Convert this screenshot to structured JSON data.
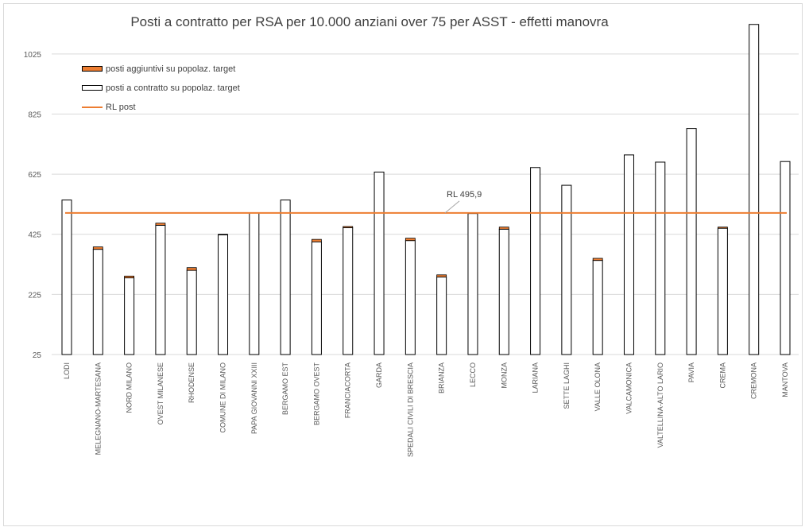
{
  "chart_data": {
    "type": "bar",
    "title": "Posti a contratto per RSA  per 10.000 anziani over 75 per ASST - effetti manovra",
    "xlabel": "",
    "ylabel": "",
    "ylim": [
      25,
      1125
    ],
    "yticks": [
      25,
      225,
      425,
      625,
      825,
      1025
    ],
    "grid": true,
    "legend_position": "top-left",
    "stacked": true,
    "categories": [
      "LODI",
      "MELEGNANO-MARTESANA",
      "NORD MILANO",
      "OVEST MILANESE",
      "RHODENSE",
      "COMUNE DI MILANO",
      "PAPA GIOVANNI XXIII",
      "BERGAMO EST",
      "BERGAMO OVEST",
      "FRANCIACORTA",
      "GARDA",
      "SPEDALI CIVILI DI BRESCIA",
      "BRIANZA",
      "LECCO",
      "MONZA",
      "LARIANA",
      "SETTE LAGHI",
      "VALLE OLONA",
      "VALCAMONICA",
      "VALTELLINA-ALTO LARIO",
      "PAVIA",
      "CREMA",
      "CREMONA",
      "MANTOVA"
    ],
    "series": [
      {
        "name": "posti a contratto su popolaz. target",
        "color": "#ffffff",
        "stroke": "#000000",
        "values": [
          539,
          375,
          280,
          455,
          305,
          423,
          496,
          539,
          400,
          447,
          632,
          404,
          283,
          494,
          442,
          647,
          588,
          338,
          689,
          665,
          777,
          445,
          1123,
          667
        ]
      },
      {
        "name": "posti aggiuntivi su popolaz. target",
        "color": "#ed7d31",
        "stroke": "#000000",
        "values": [
          0,
          8,
          6,
          7,
          9,
          2,
          0,
          0,
          8,
          4,
          0,
          8,
          7,
          0,
          7,
          0,
          0,
          7,
          0,
          0,
          0,
          4,
          0,
          0
        ]
      }
    ],
    "reference_line": {
      "name": "RL post",
      "value": 495.9,
      "label": "RL 495,9",
      "color": "#ed7d31"
    }
  }
}
